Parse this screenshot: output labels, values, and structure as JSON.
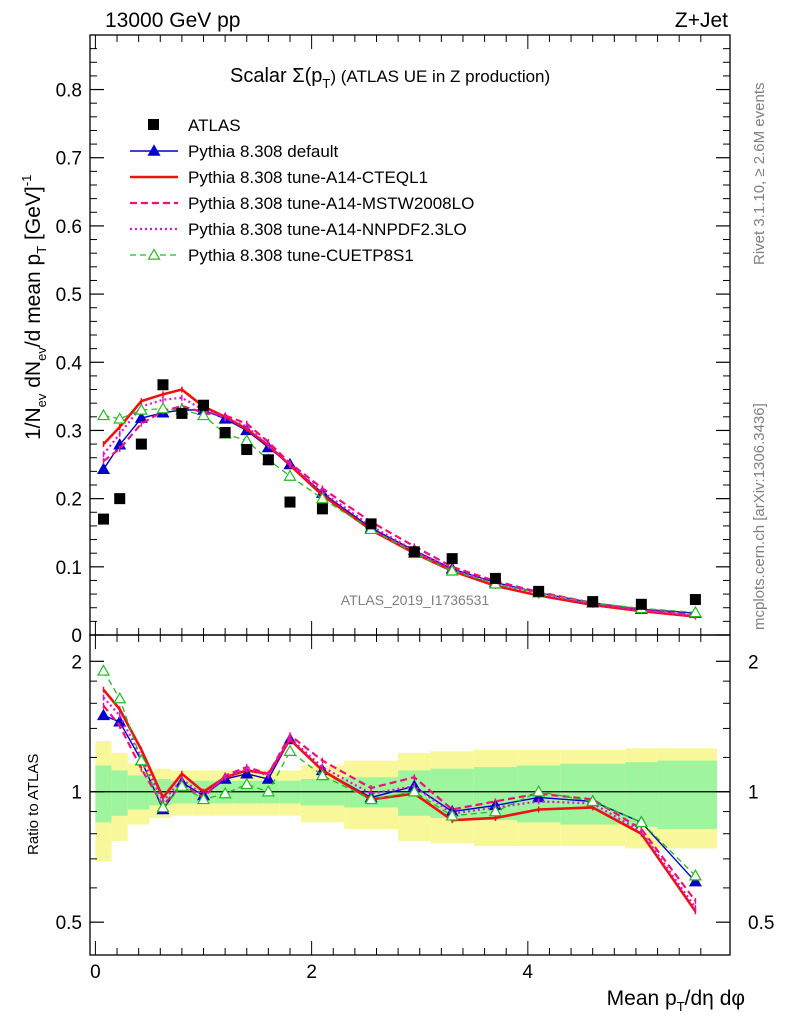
{
  "header": {
    "energy_label": "13000 GeV pp",
    "process_label": "Z+Jet",
    "plot_title": "Scalar Σ(p",
    "plot_title_sub": "T",
    "plot_title_rest": ") (ATLAS UE in Z production)",
    "analysis_id": "ATLAS_2019_I1736531",
    "rivet_label": "Rivet 3.1.10, ≥ 2.6M events",
    "mcplots_label": "mcplots.cern.ch [arXiv:1306.3436]"
  },
  "axes": {
    "ylabel_main": "1/N_ev dN_ev/d mean p_T [GeV]^-1",
    "ylabel_ratio": "Ratio to ATLAS",
    "xlabel": "Mean p_T/dη dφ"
  },
  "colors": {
    "atlas": "#000000",
    "default": "#0000cc",
    "cteql1": "#ee1111",
    "mstw": "#ee1177",
    "nnpdf": "#dd11dd",
    "cuetp8s1": "#22bb22",
    "band_inner": "#9ef59e",
    "band_outer": "#f8f89a"
  },
  "chart_data": {
    "type": "scatter",
    "x": [
      0.075,
      0.225,
      0.425,
      0.625,
      0.8,
      1.0,
      1.2,
      1.4,
      1.6,
      1.8,
      2.1,
      2.55,
      2.95,
      3.3,
      3.7,
      4.1,
      4.6,
      5.05,
      5.55
    ],
    "ylim": [
      0,
      0.88
    ],
    "xlim": [
      -0.05,
      5.87
    ],
    "ratio_ylim": [
      0.42,
      2.3
    ],
    "xticks": [
      0,
      2,
      4
    ],
    "yticks": [
      0,
      0.1,
      0.2,
      0.3,
      0.4,
      0.5,
      0.6,
      0.7,
      0.8
    ],
    "yticklabels": [
      "0",
      "0.1",
      "0.2",
      "0.3",
      "0.4",
      "0.5",
      "0.6",
      "0.7",
      "0.8"
    ],
    "ratio_yticks": [
      0.5,
      1,
      2
    ],
    "ratio_yticklabels": [
      "0.5",
      "1",
      "2"
    ],
    "series": [
      {
        "name": "ATLAS",
        "key": "atlas",
        "values": [
          0.17,
          0.2,
          0.28,
          0.367,
          0.325,
          0.337,
          0.297,
          0.272,
          0.257,
          0.195,
          0.185,
          0.163,
          0.122,
          0.112,
          0.083,
          0.064,
          0.049,
          0.045,
          0.052
        ]
      },
      {
        "name": "Pythia 8.308 default",
        "key": "default",
        "values": [
          0.243,
          0.279,
          0.318,
          0.326,
          0.33,
          0.33,
          0.317,
          0.3,
          0.275,
          0.25,
          0.208,
          0.157,
          0.124,
          0.097,
          0.077,
          0.062,
          0.047,
          0.038,
          0.032
        ]
      },
      {
        "name": "Pythia 8.308 tune-A14-CTEQL1",
        "key": "cteql1",
        "values": [
          0.28,
          0.305,
          0.343,
          0.353,
          0.36,
          0.335,
          0.32,
          0.302,
          0.278,
          0.249,
          0.205,
          0.154,
          0.12,
          0.094,
          0.072,
          0.058,
          0.044,
          0.035,
          0.027
        ]
      },
      {
        "name": "Pythia 8.308 tune-A14-MSTW2008LO",
        "key": "mstw",
        "values": [
          0.255,
          0.273,
          0.31,
          0.328,
          0.336,
          0.326,
          0.322,
          0.31,
          0.283,
          0.252,
          0.215,
          0.166,
          0.13,
          0.1,
          0.079,
          0.063,
          0.047,
          0.037,
          0.029
        ]
      },
      {
        "name": "Pythia 8.308 tune-A14-NNPDF2.3LO",
        "key": "nnpdf",
        "values": [
          0.265,
          0.295,
          0.335,
          0.345,
          0.348,
          0.33,
          0.318,
          0.306,
          0.278,
          0.25,
          0.21,
          0.16,
          0.124,
          0.097,
          0.075,
          0.061,
          0.045,
          0.036,
          0.028
        ]
      },
      {
        "name": "Pythia 8.308 tune-CUETP8S1",
        "key": "cuetp8s1",
        "values": [
          0.322,
          0.317,
          0.33,
          0.332,
          0.33,
          0.322,
          0.295,
          0.285,
          0.257,
          0.233,
          0.2,
          0.155,
          0.12,
          0.094,
          0.075,
          0.062,
          0.047,
          0.039,
          0.033
        ]
      }
    ],
    "ratio_series": [
      {
        "key": "default",
        "values": [
          1.5,
          1.45,
          1.18,
          0.91,
          1.05,
          0.98,
          1.07,
          1.1,
          1.07,
          1.32,
          1.12,
          0.97,
          1.03,
          0.9,
          0.93,
          0.97,
          0.95,
          0.85,
          0.62
        ]
      },
      {
        "key": "cteql1",
        "values": [
          1.72,
          1.55,
          1.25,
          0.97,
          1.1,
          1.0,
          1.08,
          1.12,
          1.1,
          1.32,
          1.12,
          0.96,
          0.99,
          0.86,
          0.87,
          0.91,
          0.92,
          0.8,
          0.53
        ]
      },
      {
        "key": "mstw",
        "values": [
          1.58,
          1.42,
          1.13,
          0.93,
          1.04,
          0.97,
          1.09,
          1.14,
          1.1,
          1.35,
          1.18,
          1.02,
          1.08,
          0.91,
          0.95,
          0.99,
          0.96,
          0.82,
          0.56
        ]
      },
      {
        "key": "nnpdf",
        "values": [
          1.65,
          1.5,
          1.2,
          0.95,
          1.07,
          0.98,
          1.08,
          1.13,
          1.09,
          1.33,
          1.14,
          0.99,
          1.03,
          0.89,
          0.92,
          0.95,
          0.94,
          0.81,
          0.54
        ]
      },
      {
        "key": "cuetp8s1",
        "values": [
          1.9,
          1.64,
          1.18,
          0.92,
          1.03,
          0.96,
          0.99,
          1.04,
          1.0,
          1.24,
          1.09,
          0.96,
          1.0,
          0.88,
          0.9,
          1.0,
          0.95,
          0.85,
          0.64
        ]
      }
    ],
    "band_edges": [
      0.0,
      0.15,
      0.3,
      0.5,
      0.7,
      0.9,
      1.1,
      1.3,
      1.5,
      1.7,
      1.9,
      2.3,
      2.8,
      3.1,
      3.5,
      3.9,
      4.3,
      4.9,
      5.2,
      5.75
    ],
    "band_inner": [
      0.15,
      0.12,
      0.09,
      0.07,
      0.06,
      0.06,
      0.06,
      0.06,
      0.06,
      0.06,
      0.07,
      0.08,
      0.12,
      0.13,
      0.14,
      0.15,
      0.16,
      0.17,
      0.18
    ],
    "band_outer": [
      0.31,
      0.23,
      0.16,
      0.13,
      0.12,
      0.12,
      0.12,
      0.12,
      0.12,
      0.12,
      0.15,
      0.18,
      0.23,
      0.24,
      0.25,
      0.25,
      0.25,
      0.26,
      0.26
    ],
    "legend_position": "top-left"
  }
}
